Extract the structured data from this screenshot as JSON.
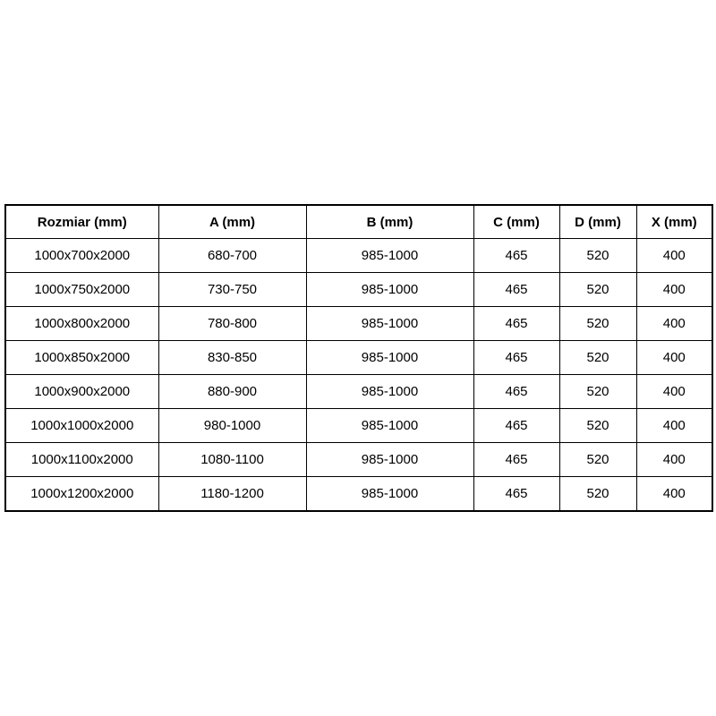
{
  "page": {
    "background_color": "#ffffff"
  },
  "table": {
    "border_color": "#000000",
    "text_color": "#000000",
    "header": {
      "size_label": "Rozmiar (mm)",
      "a_label": "A (mm)",
      "b_label": "B (mm)",
      "c_label": "C (mm)",
      "d_label": "D (mm)",
      "x_label": "X (mm)"
    },
    "rows": [
      [
        "1000x700x2000",
        "680-700",
        "985-1000",
        "465",
        "520",
        "400"
      ],
      [
        "1000x750x2000",
        "730-750",
        "985-1000",
        "465",
        "520",
        "400"
      ],
      [
        "1000x800x2000",
        "780-800",
        "985-1000",
        "465",
        "520",
        "400"
      ],
      [
        "1000x850x2000",
        "830-850",
        "985-1000",
        "465",
        "520",
        "400"
      ],
      [
        "1000x900x2000",
        "880-900",
        "985-1000",
        "465",
        "520",
        "400"
      ],
      [
        "1000x1000x2000",
        "980-1000",
        "985-1000",
        "465",
        "520",
        "400"
      ],
      [
        "1000x1100x2000",
        "1080-1100",
        "985-1000",
        "465",
        "520",
        "400"
      ],
      [
        "1000x1200x2000",
        "1180-1200",
        "985-1000",
        "465",
        "520",
        "400"
      ]
    ]
  }
}
